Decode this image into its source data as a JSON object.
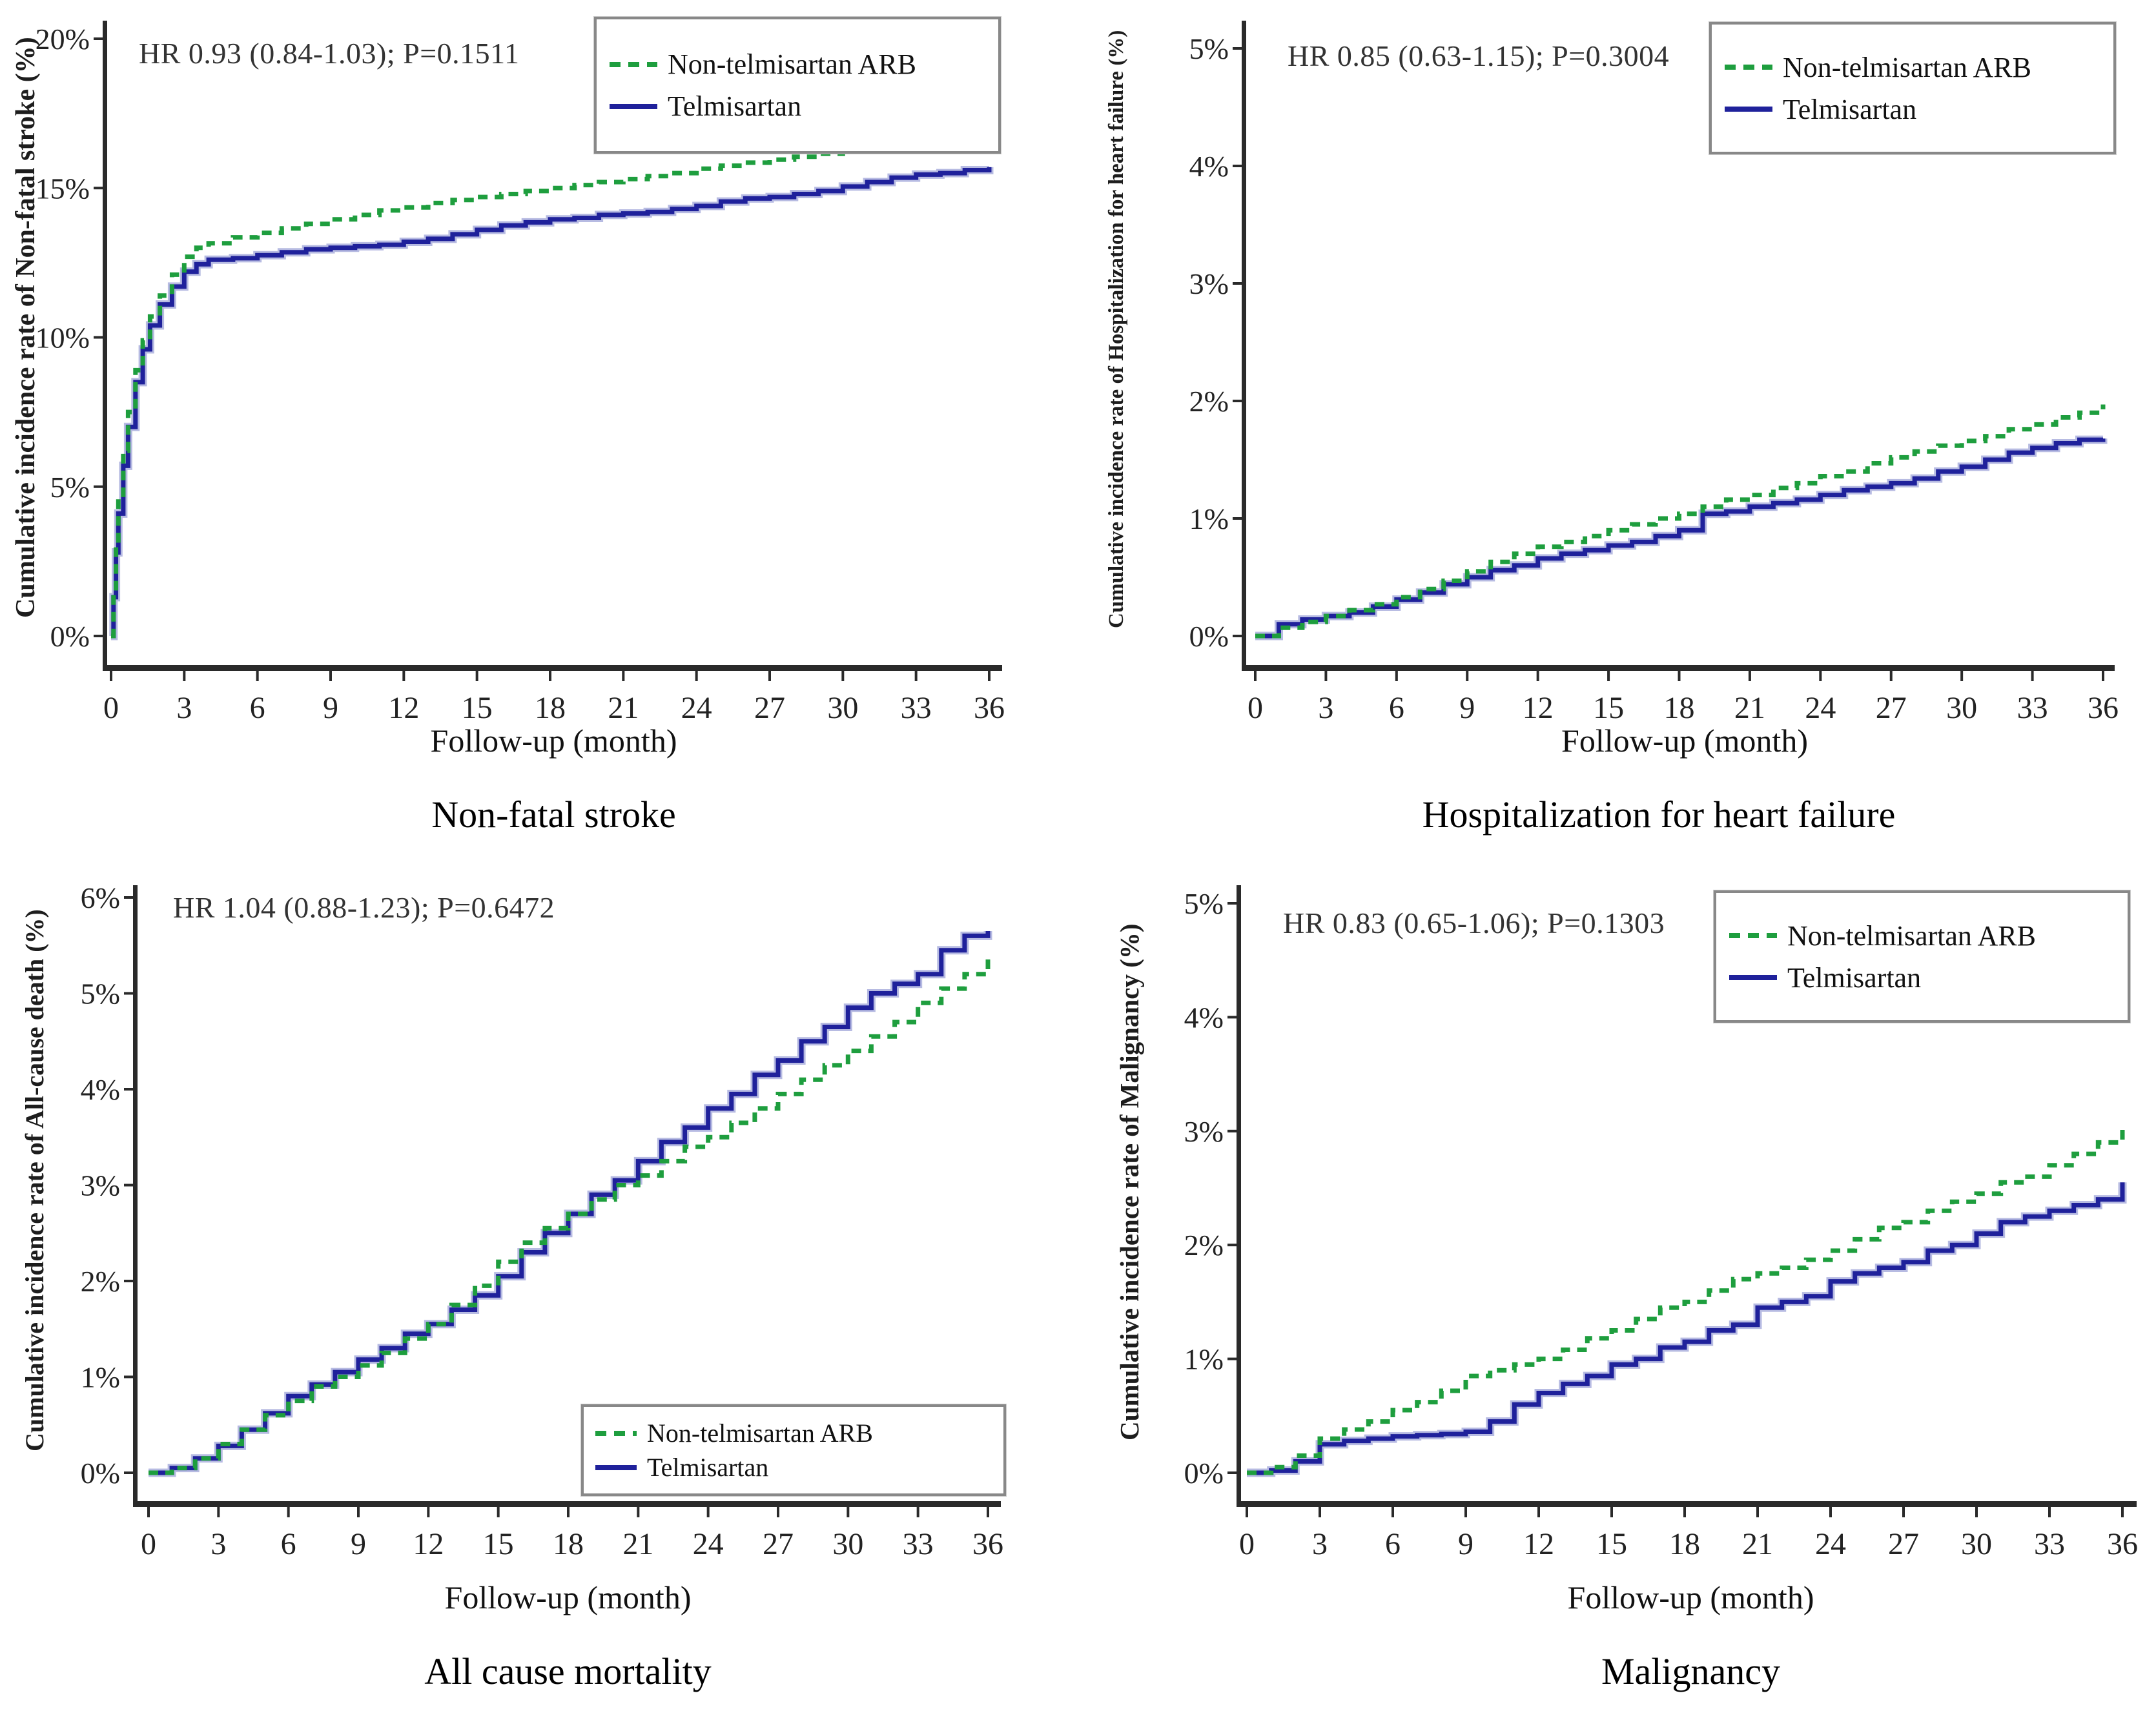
{
  "page": {
    "background": "#ffffff"
  },
  "colors": {
    "arb": "#1E9E3E",
    "tel": "#1F219B",
    "tel_halo": "#b7bbe2",
    "axis": "#2a2a2a",
    "text": "#1a1a1a",
    "legend_border": "#888888"
  },
  "legend": {
    "items": [
      {
        "label": "Non-telmisartan ARB",
        "series": "arb",
        "style": "dashed"
      },
      {
        "label": "Telmisartan",
        "series": "tel",
        "style": "solid"
      }
    ]
  },
  "chart_data": [
    {
      "type": "line",
      "title": "Non-fatal stroke",
      "annotation": "HR 0.93 (0.84-1.03); P=0.1511",
      "xlabel": "Follow-up (month)",
      "ylabel": "Cumulative incidence rate of Non-fatal stroke (%)",
      "xlim": [
        0,
        36
      ],
      "ylim": [
        0,
        20
      ],
      "x_ticks": [
        0,
        3,
        6,
        9,
        12,
        15,
        18,
        21,
        24,
        27,
        30,
        33,
        36
      ],
      "y_ticks": [
        0,
        5,
        10,
        15,
        20
      ],
      "legend_position": "top-right",
      "grid": false,
      "series": [
        {
          "name": "Non-telmisartan ARB",
          "key": "arb",
          "style": "dashed",
          "color": "#1E9E3E",
          "x": [
            0,
            0.1,
            0.2,
            0.3,
            0.5,
            0.7,
            1,
            1.3,
            1.6,
            2,
            2.5,
            3,
            3.5,
            4,
            5,
            6,
            7,
            8,
            9,
            10,
            11,
            12,
            13,
            14,
            15,
            16,
            17,
            18,
            19,
            20,
            21,
            22,
            23,
            24,
            25,
            26,
            27,
            28,
            29,
            30,
            31,
            32,
            33,
            34,
            35,
            36
          ],
          "y": [
            0,
            1.6,
            3.2,
            4.6,
            6.2,
            7.5,
            8.9,
            9.9,
            10.7,
            11.4,
            12.1,
            12.7,
            13.0,
            13.15,
            13.35,
            13.5,
            13.65,
            13.8,
            13.95,
            14.1,
            14.25,
            14.35,
            14.5,
            14.6,
            14.7,
            14.8,
            14.9,
            15.0,
            15.1,
            15.2,
            15.3,
            15.4,
            15.5,
            15.65,
            15.75,
            15.85,
            15.95,
            16.05,
            16.15,
            16.25,
            16.35,
            16.4,
            16.5,
            16.6,
            16.7,
            16.85
          ]
        },
        {
          "name": "Telmisartan",
          "key": "tel",
          "style": "solid",
          "color": "#1F219B",
          "x": [
            0,
            0.1,
            0.2,
            0.3,
            0.5,
            0.7,
            1,
            1.3,
            1.6,
            2,
            2.5,
            3,
            3.5,
            4,
            5,
            6,
            7,
            8,
            9,
            10,
            11,
            12,
            13,
            14,
            15,
            16,
            17,
            18,
            19,
            20,
            21,
            22,
            23,
            24,
            25,
            26,
            27,
            28,
            29,
            30,
            31,
            32,
            33,
            34,
            35,
            36
          ],
          "y": [
            0,
            1.3,
            2.8,
            4.1,
            5.7,
            7.0,
            8.5,
            9.6,
            10.4,
            11.1,
            11.7,
            12.2,
            12.45,
            12.6,
            12.65,
            12.75,
            12.85,
            12.95,
            13.0,
            13.05,
            13.1,
            13.2,
            13.3,
            13.45,
            13.6,
            13.75,
            13.85,
            13.95,
            14.0,
            14.1,
            14.15,
            14.2,
            14.3,
            14.4,
            14.55,
            14.65,
            14.7,
            14.8,
            14.9,
            15.05,
            15.2,
            15.35,
            15.45,
            15.5,
            15.6,
            15.7
          ]
        }
      ]
    },
    {
      "type": "line",
      "title": "Hospitalization for heart failure",
      "annotation": "HR 0.85 (0.63-1.15); P=0.3004",
      "xlabel": "Follow-up (month)",
      "ylabel": "Cumulative incidence rate of Hospitalization for heart failure (%)",
      "xlim": [
        0,
        36
      ],
      "ylim": [
        0,
        5
      ],
      "x_ticks": [
        0,
        3,
        6,
        9,
        12,
        15,
        18,
        21,
        24,
        27,
        30,
        33,
        36
      ],
      "y_ticks": [
        0,
        1,
        2,
        3,
        4,
        5
      ],
      "legend_position": "top-right",
      "grid": false,
      "series": [
        {
          "name": "Non-telmisartan ARB",
          "key": "arb",
          "style": "dashed",
          "color": "#1E9E3E",
          "x": [
            0,
            1,
            2,
            3,
            4,
            5,
            6,
            7,
            8,
            9,
            10,
            11,
            12,
            13,
            14,
            15,
            16,
            17,
            18,
            19,
            20,
            21,
            22,
            23,
            24,
            25,
            26,
            27,
            28,
            29,
            30,
            31,
            32,
            33,
            34,
            35,
            36
          ],
          "y": [
            0,
            0.07,
            0.12,
            0.17,
            0.22,
            0.27,
            0.33,
            0.4,
            0.47,
            0.55,
            0.63,
            0.7,
            0.76,
            0.8,
            0.85,
            0.9,
            0.95,
            1.0,
            1.04,
            1.1,
            1.16,
            1.2,
            1.26,
            1.3,
            1.36,
            1.4,
            1.47,
            1.52,
            1.57,
            1.62,
            1.66,
            1.7,
            1.76,
            1.8,
            1.86,
            1.9,
            1.97
          ]
        },
        {
          "name": "Telmisartan",
          "key": "tel",
          "style": "solid",
          "color": "#1F219B",
          "x": [
            0,
            1,
            2,
            3,
            4,
            5,
            6,
            7,
            8,
            9,
            10,
            11,
            12,
            13,
            14,
            15,
            16,
            17,
            18,
            19,
            20,
            21,
            22,
            23,
            24,
            25,
            26,
            27,
            28,
            29,
            30,
            31,
            32,
            33,
            34,
            35,
            36
          ],
          "y": [
            0,
            0.1,
            0.14,
            0.17,
            0.2,
            0.25,
            0.31,
            0.37,
            0.44,
            0.5,
            0.56,
            0.6,
            0.66,
            0.7,
            0.73,
            0.77,
            0.8,
            0.85,
            0.9,
            1.04,
            1.06,
            1.1,
            1.13,
            1.16,
            1.2,
            1.24,
            1.27,
            1.3,
            1.34,
            1.4,
            1.44,
            1.5,
            1.56,
            1.6,
            1.64,
            1.67,
            1.68
          ]
        }
      ]
    },
    {
      "type": "line",
      "title": "All cause mortality",
      "annotation": "HR 1.04 (0.88-1.23); P=0.6472",
      "xlabel": "Follow-up (month)",
      "ylabel": "Cumulative incidence rate of All-cause death (%)",
      "xlim": [
        0,
        36
      ],
      "ylim": [
        0,
        6
      ],
      "x_ticks": [
        0,
        3,
        6,
        9,
        12,
        15,
        18,
        21,
        24,
        27,
        30,
        33,
        36
      ],
      "y_ticks": [
        0,
        1,
        2,
        3,
        4,
        5,
        6
      ],
      "legend_position": "bottom-right",
      "grid": false,
      "series": [
        {
          "name": "Non-telmisartan ARB",
          "key": "arb",
          "style": "dashed",
          "color": "#1E9E3E",
          "x": [
            0,
            1,
            2,
            3,
            4,
            5,
            6,
            7,
            8,
            9,
            10,
            11,
            12,
            13,
            14,
            15,
            16,
            17,
            18,
            19,
            20,
            21,
            22,
            23,
            24,
            25,
            26,
            27,
            28,
            29,
            30,
            31,
            32,
            33,
            34,
            35,
            36
          ],
          "y": [
            0,
            0.05,
            0.15,
            0.3,
            0.45,
            0.6,
            0.75,
            0.9,
            1.0,
            1.12,
            1.25,
            1.4,
            1.55,
            1.75,
            1.95,
            2.2,
            2.4,
            2.55,
            2.7,
            2.85,
            3.0,
            3.1,
            3.25,
            3.4,
            3.5,
            3.65,
            3.8,
            3.95,
            4.1,
            4.25,
            4.4,
            4.55,
            4.7,
            4.9,
            5.05,
            5.2,
            5.4
          ]
        },
        {
          "name": "Telmisartan",
          "key": "tel",
          "style": "solid",
          "color": "#1F219B",
          "x": [
            0,
            1,
            2,
            3,
            4,
            5,
            6,
            7,
            8,
            9,
            10,
            11,
            12,
            13,
            14,
            15,
            16,
            17,
            18,
            19,
            20,
            21,
            22,
            23,
            24,
            25,
            26,
            27,
            28,
            29,
            30,
            31,
            32,
            33,
            34,
            35,
            36
          ],
          "y": [
            0,
            0.05,
            0.15,
            0.28,
            0.45,
            0.62,
            0.8,
            0.92,
            1.05,
            1.18,
            1.3,
            1.45,
            1.55,
            1.7,
            1.85,
            2.05,
            2.3,
            2.5,
            2.7,
            2.9,
            3.05,
            3.25,
            3.45,
            3.6,
            3.8,
            3.95,
            4.15,
            4.3,
            4.5,
            4.65,
            4.85,
            5.0,
            5.1,
            5.2,
            5.45,
            5.6,
            5.65
          ]
        }
      ]
    },
    {
      "type": "line",
      "title": "Malignancy",
      "annotation": "HR 0.83 (0.65-1.06); P=0.1303",
      "xlabel": "Follow-up (month)",
      "ylabel": "Cumulative incidence rate of Malignancy (%)",
      "xlim": [
        0,
        36
      ],
      "ylim": [
        0,
        5
      ],
      "x_ticks": [
        0,
        3,
        6,
        9,
        12,
        15,
        18,
        21,
        24,
        27,
        30,
        33,
        36
      ],
      "y_ticks": [
        0,
        1,
        2,
        3,
        4,
        5
      ],
      "legend_position": "top-right",
      "grid": false,
      "series": [
        {
          "name": "Non-telmisartan ARB",
          "key": "arb",
          "style": "dashed",
          "color": "#1E9E3E",
          "x": [
            0,
            1,
            2,
            3,
            4,
            5,
            6,
            7,
            8,
            9,
            10,
            11,
            12,
            13,
            14,
            15,
            16,
            17,
            18,
            19,
            20,
            21,
            22,
            23,
            24,
            25,
            26,
            27,
            28,
            29,
            30,
            31,
            32,
            33,
            34,
            35,
            36
          ],
          "y": [
            0,
            0.05,
            0.15,
            0.3,
            0.38,
            0.45,
            0.55,
            0.62,
            0.72,
            0.85,
            0.9,
            0.95,
            1.0,
            1.08,
            1.18,
            1.25,
            1.35,
            1.45,
            1.5,
            1.6,
            1.7,
            1.75,
            1.8,
            1.87,
            1.95,
            2.05,
            2.15,
            2.2,
            2.3,
            2.38,
            2.45,
            2.55,
            2.6,
            2.7,
            2.8,
            2.9,
            3.05
          ]
        },
        {
          "name": "Telmisartan",
          "key": "tel",
          "style": "solid",
          "color": "#1F219B",
          "x": [
            0,
            1,
            2,
            3,
            4,
            5,
            6,
            7,
            8,
            9,
            10,
            11,
            12,
            13,
            14,
            15,
            16,
            17,
            18,
            19,
            20,
            21,
            22,
            23,
            24,
            25,
            26,
            27,
            28,
            29,
            30,
            31,
            32,
            33,
            34,
            35,
            36
          ],
          "y": [
            0,
            0.02,
            0.1,
            0.25,
            0.28,
            0.3,
            0.32,
            0.33,
            0.34,
            0.36,
            0.45,
            0.6,
            0.7,
            0.78,
            0.85,
            0.95,
            1.0,
            1.1,
            1.15,
            1.25,
            1.3,
            1.45,
            1.5,
            1.55,
            1.68,
            1.75,
            1.8,
            1.85,
            1.95,
            2.0,
            2.1,
            2.2,
            2.25,
            2.3,
            2.35,
            2.4,
            2.55
          ]
        }
      ]
    }
  ]
}
